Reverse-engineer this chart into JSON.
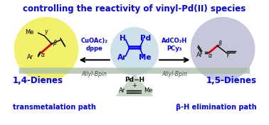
{
  "title": "controlling the reactivity of vinyl-Pd(II) species",
  "title_color": "#0000ff",
  "title_fontsize": 8.5,
  "bg_color": "#ffffff",
  "left_circle_color": "#f0f060",
  "center_circle_color": "#c8dce8",
  "right_circle_color": "#c0c0d8",
  "balance_color": "#a8bca8",
  "triangle_color": "#c0d0c0",
  "label_left": "1,4-Dienes",
  "label_right": "1,5-Dienes",
  "label_left_path": "transmetalation path",
  "label_right_path": "β-H elimination path",
  "reagent_left": "CuOAc)₂\ndppe",
  "reagent_right": "AdCO₂H\nPCy₃",
  "allyl_left": "Allyl-Bpin",
  "allyl_right": "Allyl-Bpin",
  "blue": "#0000ff",
  "black": "#000000",
  "red": "#dd0000",
  "arrow_color": "#000088"
}
